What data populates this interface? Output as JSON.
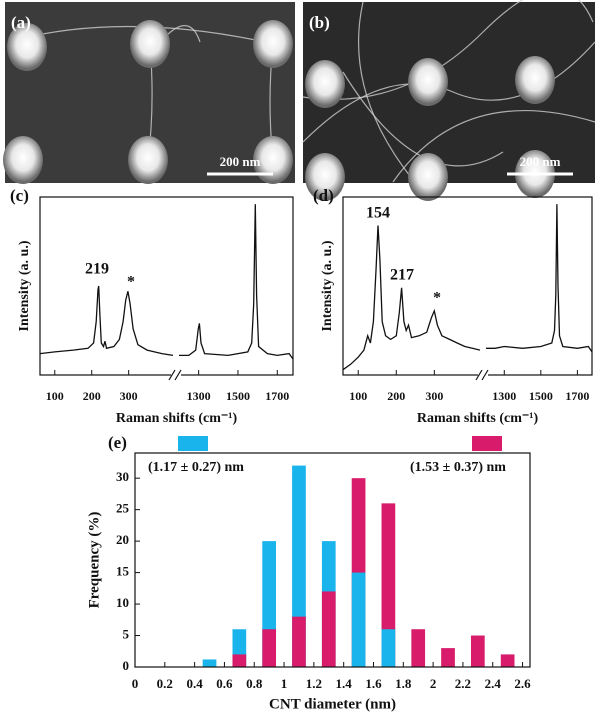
{
  "images": [
    {
      "panel_label": "(a)",
      "scale_bar": "200 nm"
    },
    {
      "panel_label": "(b)",
      "scale_bar": "200 nm"
    }
  ],
  "chart_data": [
    {
      "type": "line",
      "panel_label": "(c)",
      "x_label": "Raman shifts (cm⁻¹)",
      "y_label": "Intensity (a. u.)",
      "color": "#111111",
      "x": [
        60,
        100,
        150,
        190,
        205,
        212,
        217,
        219,
        222,
        226,
        232,
        236,
        240,
        260,
        275,
        285,
        292,
        298,
        304,
        312,
        325,
        350,
        390,
        420,
        1200,
        1250,
        1285,
        1298,
        1304,
        1312,
        1330,
        1450,
        1550,
        1570,
        1580,
        1588,
        1595,
        1605,
        1650,
        1700,
        1760,
        1780
      ],
      "values": [
        12,
        13,
        14,
        15,
        18,
        30,
        48,
        50,
        35,
        18,
        16,
        19,
        15,
        16,
        20,
        30,
        42,
        47,
        40,
        26,
        17,
        14,
        12,
        11,
        11,
        11,
        14,
        26,
        29,
        18,
        12,
        11,
        13,
        18,
        40,
        96,
        45,
        16,
        12,
        11,
        12,
        9
      ],
      "xlim": [
        [
          60,
          420
        ],
        [
          1200,
          1780
        ]
      ],
      "ylim": [
        0,
        100
      ],
      "xticks": [
        100,
        200,
        300,
        1300,
        1500,
        1700
      ],
      "annotations": [
        {
          "text": "219"
        },
        {
          "text": "*"
        }
      ]
    },
    {
      "type": "line",
      "panel_label": "(d)",
      "x_label": "Raman shifts (cm⁻¹)",
      "y_label": "Intensity (a. u.)",
      "color": "#111111",
      "x": [
        60,
        80,
        100,
        115,
        125,
        132,
        140,
        147,
        152,
        157,
        163,
        172,
        185,
        200,
        208,
        214,
        220,
        226,
        232,
        240,
        260,
        280,
        292,
        300,
        308,
        320,
        340,
        360,
        380,
        400,
        420,
        1200,
        1250,
        1300,
        1400,
        1500,
        1560,
        1575,
        1582,
        1588,
        1594,
        1602,
        1620,
        1700,
        1760,
        1780
      ],
      "values": [
        3,
        6,
        10,
        14,
        22,
        18,
        30,
        60,
        84,
        65,
        30,
        22,
        20,
        22,
        35,
        49,
        30,
        25,
        28,
        21,
        22,
        24,
        32,
        36,
        28,
        22,
        20,
        18,
        16,
        15,
        14,
        15,
        15,
        16,
        15,
        16,
        18,
        25,
        45,
        96,
        50,
        22,
        16,
        15,
        16,
        13
      ],
      "xlim": [
        [
          60,
          420
        ],
        [
          1200,
          1780
        ]
      ],
      "ylim": [
        0,
        100
      ],
      "xticks": [
        100,
        200,
        300,
        1300,
        1500,
        1700
      ],
      "annotations": [
        {
          "text": "154"
        },
        {
          "text": "217"
        },
        {
          "text": "*"
        }
      ]
    },
    {
      "type": "histogram",
      "panel_label": "(e)",
      "x_label": "CNT diameter (nm)",
      "y_label": "Frequency (%)",
      "bins": [
        0.4,
        0.6,
        0.8,
        1.0,
        1.2,
        1.4,
        1.6,
        1.8,
        2.0,
        2.2,
        2.4,
        2.6
      ],
      "series": [
        {
          "name": "(1.17 ± 0.27) nm",
          "color": "#19b4ec",
          "values": [
            1.2,
            6,
            20,
            32,
            20,
            15,
            6,
            0,
            0,
            0,
            0
          ]
        },
        {
          "name": "(1.53 ± 0.37) nm",
          "color": "#d81b6b",
          "values": [
            0,
            2,
            6,
            8,
            12,
            30,
            26,
            6,
            3,
            5,
            2
          ]
        }
      ],
      "xlim": [
        0,
        2.65
      ],
      "ylim": [
        0,
        34
      ],
      "xticks": [
        0,
        0.2,
        0.4,
        0.6,
        0.8,
        1.0,
        1.2,
        1.4,
        1.6,
        1.8,
        2.0,
        2.2,
        2.4,
        2.6
      ],
      "yticks": [
        0,
        5,
        10,
        15,
        20,
        25,
        30
      ]
    }
  ]
}
